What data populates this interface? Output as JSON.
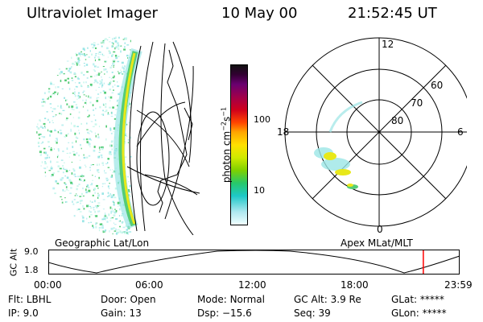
{
  "header": {
    "instrument": "Ultraviolet Imager",
    "date": "10 May 00",
    "time": "21:52:45 UT"
  },
  "colors": {
    "grid": "#000000",
    "current_time_marker": "#ff0000",
    "aurora_low": "#9be6e6",
    "aurora_mid": "#55cc77",
    "aurora_high": "#e8e81a"
  },
  "left_image": {
    "projection_label": "Geographic Lat/Lon"
  },
  "colorbar": {
    "unit_prefix": "photon cm",
    "unit_exp1": "−2",
    "unit_mid": "s",
    "unit_exp2": "−1",
    "tick_labels": [
      "100",
      "10"
    ]
  },
  "polar_plot": {
    "projection_label": "Apex MLat/MLT",
    "mlt_labels": {
      "top": "12",
      "left": "18",
      "right": "6",
      "bottom": "0"
    },
    "lat_labels": [
      "60",
      "70",
      "80"
    ]
  },
  "altitude_plot": {
    "ylabel": "GC Alt",
    "y_ticks": [
      "9.0",
      "1.8"
    ],
    "x_ticks": [
      "00:00",
      "06:00",
      "12:00",
      "18:00",
      "23:59"
    ],
    "current_time_hours": 21.88
  },
  "status": {
    "filter_label": "Flt:",
    "filter_value": "LBHL",
    "ip_label": "IP:",
    "ip_value": "9.0",
    "door_label": "Door:",
    "door_value": "Open",
    "gain_label": "Gain:",
    "gain_value": "13",
    "mode_label": "Mode:",
    "mode_value": "Normal",
    "dsp_label": "Dsp:",
    "dsp_value": "−15.6",
    "gcalt_label": "GC Alt:",
    "gcalt_value": "3.9 Re",
    "seq_label": "Seq:",
    "seq_value": "39",
    "glat_label": "GLat:",
    "glat_value": "*****",
    "glon_label": "GLon:",
    "glon_value": "*****"
  }
}
